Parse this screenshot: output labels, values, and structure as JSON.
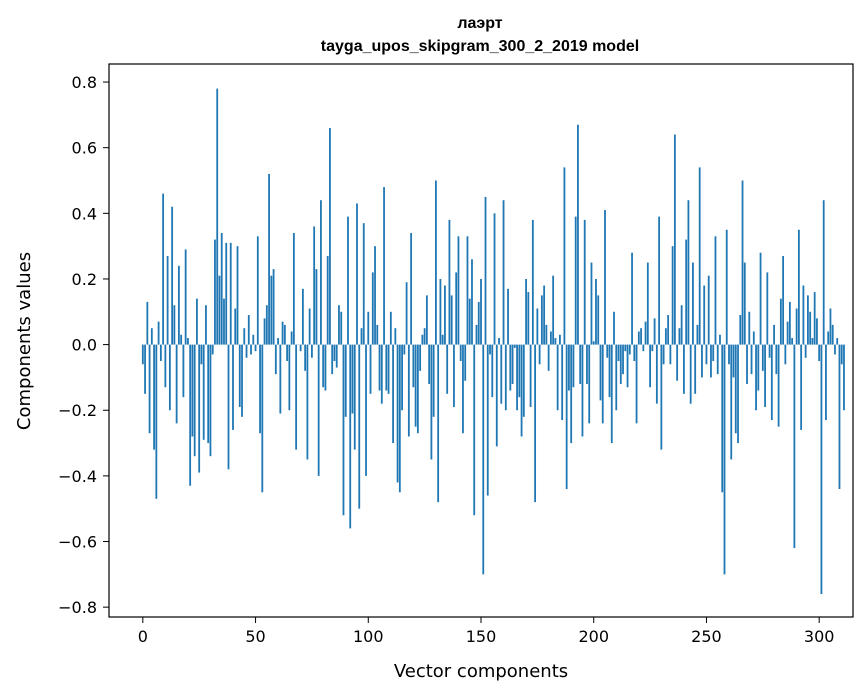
{
  "chart_data": {
    "type": "bar",
    "title": "лаэрт",
    "subtitle": "tayga_upos_skipgram_300_2_2019 model",
    "xlabel": "Vector components",
    "ylabel": "Components values",
    "xlim": [
      -15,
      315
    ],
    "ylim": [
      -0.83,
      0.855
    ],
    "xticks": [
      0,
      50,
      100,
      150,
      200,
      250,
      300
    ],
    "yticks": [
      -0.8,
      -0.6,
      -0.4,
      -0.2,
      0.0,
      0.2,
      0.4,
      0.6,
      0.8
    ],
    "xtick_labels": [
      "0",
      "50",
      "100",
      "150",
      "200",
      "250",
      "300"
    ],
    "ytick_labels": [
      "−0.8",
      "−0.6",
      "−0.4",
      "−0.2",
      "0.0",
      "0.2",
      "0.4",
      "0.6",
      "0.8"
    ],
    "bar_color": "#1f77b4",
    "values": [
      -0.06,
      -0.15,
      0.13,
      -0.27,
      0.05,
      -0.32,
      -0.47,
      0.07,
      -0.05,
      0.46,
      -0.13,
      0.27,
      -0.2,
      0.42,
      0.12,
      -0.24,
      0.24,
      0.03,
      -0.16,
      0.29,
      0.02,
      -0.43,
      -0.28,
      -0.34,
      0.14,
      -0.39,
      -0.06,
      -0.29,
      0.12,
      -0.3,
      -0.34,
      -0.03,
      0.32,
      0.78,
      0.21,
      0.34,
      0.14,
      0.31,
      -0.38,
      0.31,
      -0.26,
      0.11,
      0.3,
      -0.19,
      -0.22,
      0.05,
      -0.04,
      0.09,
      -0.03,
      0.03,
      -0.02,
      0.33,
      -0.27,
      -0.45,
      0.08,
      0.12,
      0.52,
      0.21,
      0.23,
      -0.09,
      0.02,
      -0.21,
      0.07,
      0.06,
      -0.05,
      -0.2,
      0.04,
      0.34,
      -0.32,
      0.0,
      -0.02,
      0.17,
      -0.08,
      -0.35,
      0.11,
      -0.04,
      0.36,
      0.23,
      -0.4,
      0.44,
      -0.13,
      -0.14,
      0.27,
      0.66,
      -0.09,
      -0.05,
      -0.07,
      0.12,
      0.1,
      -0.52,
      -0.22,
      0.39,
      -0.56,
      -0.21,
      -0.32,
      0.43,
      -0.5,
      0.05,
      0.37,
      -0.4,
      0.1,
      -0.15,
      0.22,
      0.3,
      0.06,
      -0.14,
      -0.18,
      0.48,
      -0.14,
      -0.15,
      0.1,
      -0.3,
      0.05,
      -0.42,
      -0.45,
      -0.2,
      -0.03,
      0.19,
      -0.28,
      0.34,
      -0.13,
      -0.25,
      -0.27,
      -0.08,
      0.03,
      0.05,
      0.15,
      -0.12,
      -0.35,
      -0.22,
      0.5,
      -0.48,
      0.2,
      0.03,
      0.18,
      -0.15,
      0.38,
      0.15,
      -0.19,
      0.22,
      0.33,
      -0.05,
      -0.27,
      -0.11,
      0.33,
      0.14,
      0.26,
      -0.52,
      0.06,
      0.13,
      0.2,
      -0.7,
      0.45,
      -0.46,
      -0.03,
      -0.16,
      0.4,
      -0.31,
      0.02,
      -0.18,
      0.44,
      -0.2,
      0.17,
      -0.14,
      -0.12,
      -0.01,
      -0.2,
      -0.16,
      -0.28,
      -0.22,
      0.2,
      0.16,
      -0.19,
      0.38,
      -0.48,
      0.11,
      -0.06,
      0.15,
      0.18,
      0.06,
      -0.08,
      0.04,
      0.21,
      0.02,
      -0.2,
      0.03,
      -0.23,
      0.54,
      -0.44,
      -0.14,
      -0.3,
      -0.13,
      0.39,
      0.67,
      -0.12,
      -0.28,
      0.38,
      -0.12,
      -0.24,
      0.25,
      0.01,
      0.2,
      0.15,
      -0.17,
      -0.24,
      0.41,
      -0.04,
      -0.16,
      -0.3,
      0.1,
      -0.2,
      -0.05,
      -0.12,
      -0.09,
      -0.02,
      -0.13,
      -0.03,
      0.28,
      -0.05,
      -0.24,
      0.04,
      0.05,
      -0.02,
      0.07,
      0.25,
      -0.13,
      -0.02,
      0.08,
      -0.18,
      0.39,
      -0.32,
      -0.06,
      0.05,
      0.09,
      -0.06,
      0.3,
      0.64,
      -0.11,
      0.05,
      0.12,
      -0.15,
      0.32,
      0.44,
      -0.18,
      0.25,
      -0.15,
      0.06,
      0.54,
      -0.1,
      0.18,
      -0.06,
      0.21,
      -0.1,
      -0.05,
      0.33,
      -0.09,
      0.03,
      -0.45,
      -0.7,
      0.35,
      -0.06,
      -0.35,
      -0.1,
      -0.27,
      -0.3,
      0.09,
      0.5,
      0.25,
      -0.12,
      0.1,
      -0.09,
      0.04,
      -0.2,
      -0.14,
      0.28,
      -0.08,
      -0.19,
      0.22,
      -0.04,
      -0.23,
      0.06,
      -0.09,
      -0.25,
      0.14,
      0.27,
      -0.06,
      0.07,
      0.13,
      0.02,
      -0.62,
      0.11,
      0.35,
      -0.26,
      0.18,
      -0.04,
      0.15,
      0.1,
      0.02,
      0.16,
      0.08,
      -0.05,
      -0.76,
      0.44,
      -0.23,
      0.04,
      0.11,
      0.06,
      -0.03,
      0.02,
      -0.44,
      -0.06,
      -0.2
    ]
  }
}
